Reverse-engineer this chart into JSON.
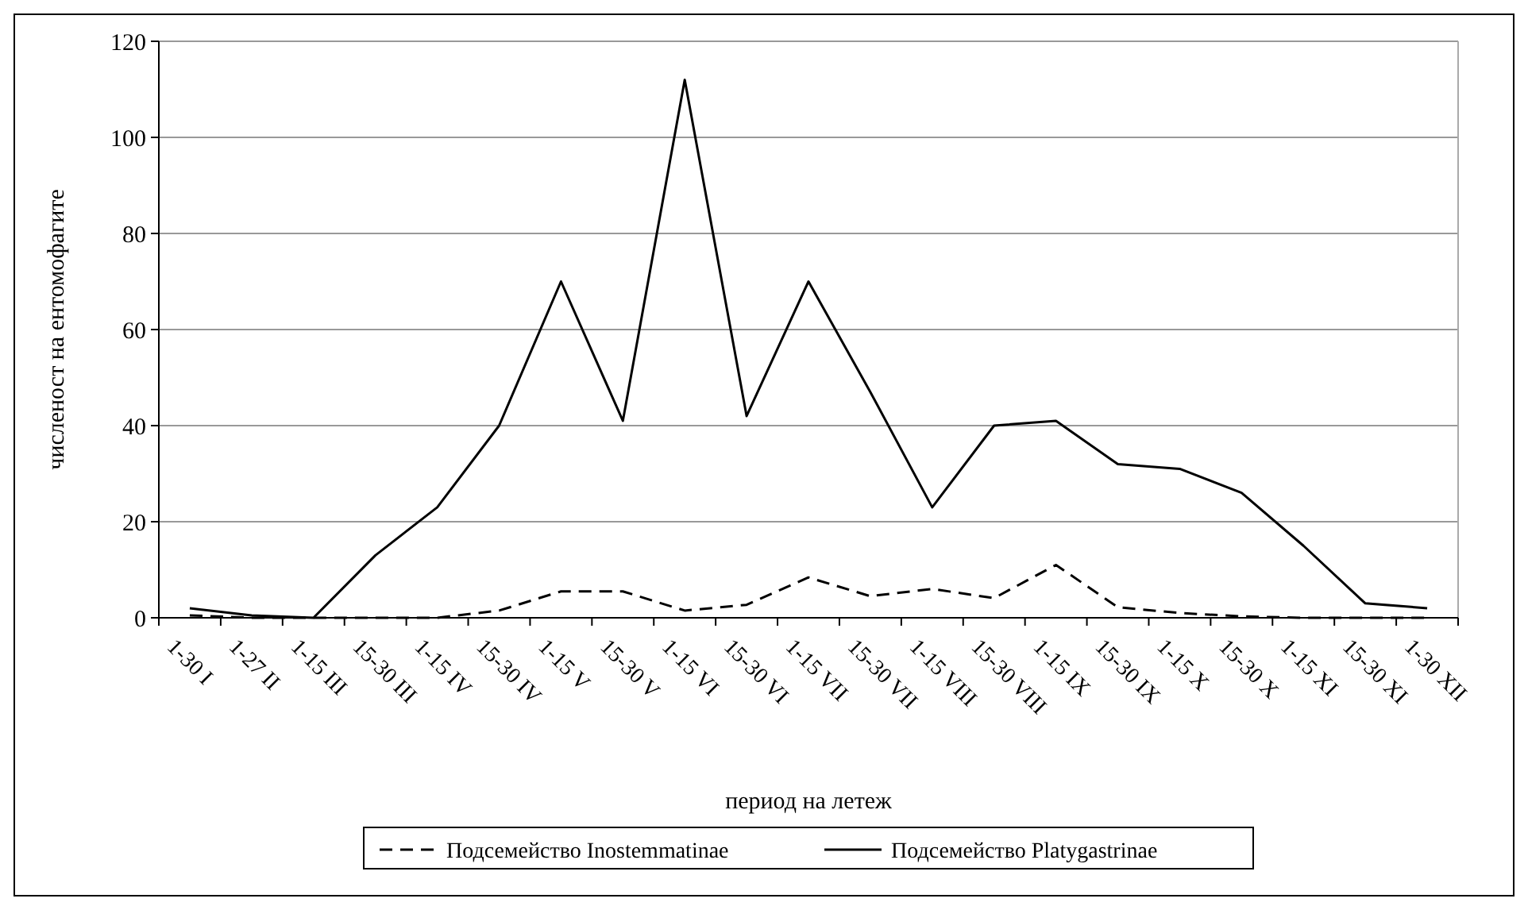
{
  "chart_data": {
    "type": "line",
    "xlabel": "период на летеж",
    "ylabel": "численост на ентомофагите",
    "categories": [
      "1-30 I",
      "1-27 II",
      "1-15 III",
      "15-30 III",
      "1-15 IV",
      "15-30 IV",
      "1-15 V",
      "15-30 V",
      "1-15 VI",
      "15-30 VI",
      "1-15 VII",
      "15-30 VII",
      "1-15 VIII",
      "15-30 VIII",
      "1-15 IX",
      "15-30 IX",
      "1-15 X",
      "15-30 X",
      "1-15 XI",
      "15-30 XI",
      "1-30 XII"
    ],
    "series": [
      {
        "name": "Подсемейство Inostemmatinae",
        "color": "#000000",
        "line_style": "dashed",
        "values": [
          0.5,
          0,
          0,
          0,
          0,
          1.5,
          5.5,
          5.5,
          1.5,
          2.7,
          8.4,
          4.5,
          6,
          4.1,
          11,
          2.2,
          1,
          0.3,
          0,
          0,
          0
        ]
      },
      {
        "name": "Подсемейство Platygastrinae",
        "color": "#000000",
        "line_style": "solid",
        "values": [
          2,
          0.5,
          0,
          13,
          23,
          40,
          70,
          41,
          112,
          42,
          70,
          47,
          23,
          40,
          41,
          32,
          31,
          26,
          15,
          3,
          2
        ]
      }
    ],
    "ylim": [
      0,
      120
    ],
    "yticks": [
      0,
      20,
      40,
      60,
      80,
      100,
      120
    ],
    "grid": "y",
    "legend": "bottom",
    "marker": "none"
  }
}
